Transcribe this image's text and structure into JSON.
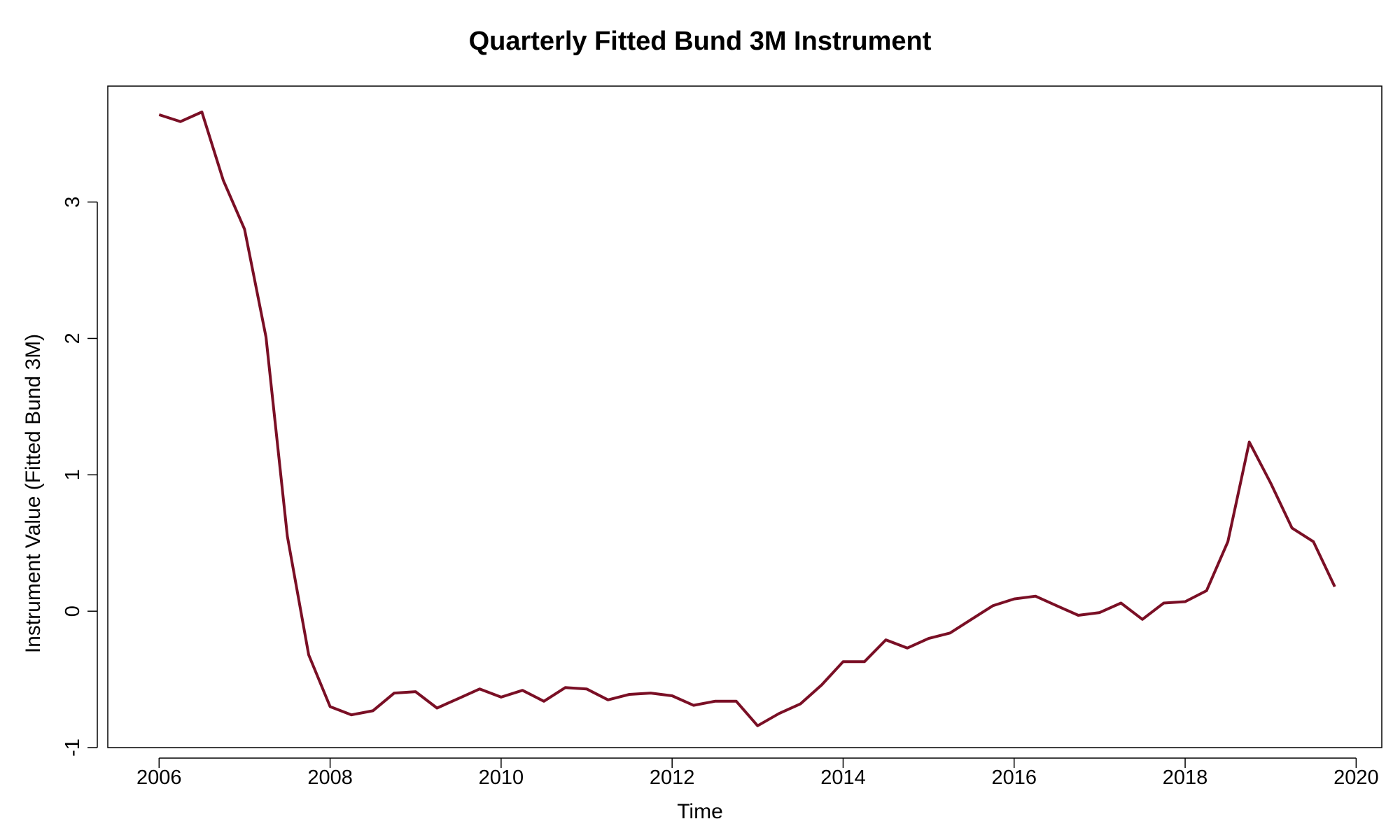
{
  "chart_data": {
    "type": "line",
    "title": "Quarterly Fitted Bund 3M Instrument",
    "xlabel": "Time",
    "ylabel": "Instrument Value (Fitted Bund 3M)",
    "xlim": [
      2005.4,
      2020.3
    ],
    "ylim": [
      -1,
      3.85
    ],
    "xticks": [
      2006,
      2008,
      2010,
      2012,
      2014,
      2016,
      2018,
      2020
    ],
    "xtick_labels": [
      "2006",
      "2008",
      "2010",
      "2012",
      "2014",
      "2016",
      "2018",
      "2020"
    ],
    "yticks": [
      -1,
      0,
      1,
      2,
      3
    ],
    "ytick_labels": [
      "-1",
      "0",
      "1",
      "2",
      "3"
    ],
    "grid": false,
    "series": [
      {
        "color": "#7a0f25",
        "x": [
          2006.0,
          2006.25,
          2006.5,
          2006.75,
          2007.0,
          2007.25,
          2007.5,
          2007.75,
          2008.0,
          2008.25,
          2008.5,
          2008.75,
          2009.0,
          2009.25,
          2009.5,
          2009.75,
          2010.0,
          2010.25,
          2010.5,
          2010.75,
          2011.0,
          2011.25,
          2011.5,
          2011.75,
          2012.0,
          2012.25,
          2012.5,
          2012.75,
          2013.0,
          2013.25,
          2013.5,
          2013.75,
          2014.0,
          2014.25,
          2014.5,
          2014.75,
          2015.0,
          2015.25,
          2015.5,
          2015.75,
          2016.0,
          2016.25,
          2016.5,
          2016.75,
          2017.0,
          2017.25,
          2017.5,
          2017.75,
          2018.0,
          2018.25,
          2018.5,
          2018.75,
          2019.0,
          2019.25,
          2019.5,
          2019.75
        ],
        "values": [
          3.64,
          3.59,
          3.66,
          3.16,
          2.8,
          2.01,
          0.55,
          -0.32,
          -0.7,
          -0.76,
          -0.73,
          -0.6,
          -0.59,
          -0.71,
          -0.64,
          -0.57,
          -0.63,
          -0.58,
          -0.66,
          -0.56,
          -0.57,
          -0.65,
          -0.61,
          -0.6,
          -0.62,
          -0.69,
          -0.66,
          -0.66,
          -0.84,
          -0.75,
          -0.68,
          -0.54,
          -0.37,
          -0.37,
          -0.21,
          -0.27,
          -0.2,
          -0.16,
          -0.06,
          0.04,
          0.09,
          0.11,
          0.04,
          -0.03,
          -0.01,
          0.06,
          -0.06,
          0.06,
          0.07,
          0.15,
          0.51,
          1.24,
          0.94,
          0.61,
          0.51,
          0.18
        ]
      }
    ]
  }
}
